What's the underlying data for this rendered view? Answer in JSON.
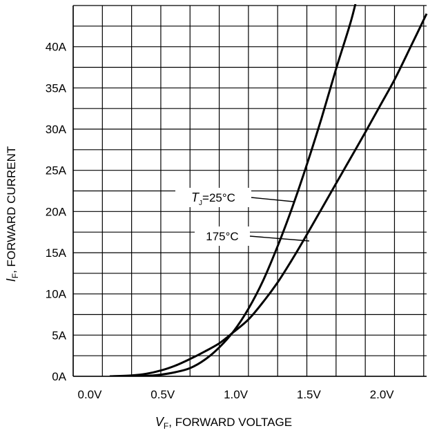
{
  "chart_data": {
    "type": "line",
    "xlabel": {
      "var": "V",
      "sub": "F",
      "text": ", FORWARD VOLTAGE"
    },
    "ylabel": {
      "var": "I",
      "sub": "F",
      "text": ", FORWARD CURRENT"
    },
    "xlim": [
      0.0,
      2.42
    ],
    "ylim": [
      0,
      45
    ],
    "x_ticks": [
      {
        "value": 0.0,
        "label": "0.0V"
      },
      {
        "value": 0.5,
        "label": "0.5V"
      },
      {
        "value": 1.0,
        "label": "1.0V"
      },
      {
        "value": 1.5,
        "label": "1.5V"
      },
      {
        "value": 2.0,
        "label": "2.0V"
      }
    ],
    "y_ticks": [
      {
        "value": 0,
        "label": "0A"
      },
      {
        "value": 5,
        "label": "5A"
      },
      {
        "value": 10,
        "label": "10A"
      },
      {
        "value": 15,
        "label": "15A"
      },
      {
        "value": 20,
        "label": "20A"
      },
      {
        "value": 25,
        "label": "25A"
      },
      {
        "value": 30,
        "label": "30A"
      },
      {
        "value": 35,
        "label": "35A"
      },
      {
        "value": 40,
        "label": "40A"
      }
    ],
    "grid": true,
    "grid_x_step": 0.2,
    "grid_y_step": 2.5,
    "series": [
      {
        "name": "T_J=25°C",
        "x": [
          0.4,
          0.5,
          0.6,
          0.7,
          0.8,
          0.9,
          1.0,
          1.1,
          1.2,
          1.3,
          1.4,
          1.5,
          1.6,
          1.7,
          1.8,
          1.9,
          1.95
        ],
        "y": [
          0.0,
          0.05,
          0.2,
          0.5,
          1.0,
          2.0,
          3.5,
          5.5,
          8.2,
          11.6,
          15.8,
          20.5,
          25.7,
          31.3,
          37.3,
          43.0,
          46.5
        ]
      },
      {
        "name": "175°C",
        "x": [
          0.25,
          0.4,
          0.5,
          0.6,
          0.7,
          0.8,
          0.9,
          1.0,
          1.1,
          1.2,
          1.3,
          1.4,
          1.5,
          1.6,
          1.7,
          1.8,
          1.9,
          2.0,
          2.1,
          2.2,
          2.3,
          2.42
        ],
        "y": [
          0.0,
          0.1,
          0.3,
          0.7,
          1.3,
          2.1,
          3.0,
          4.0,
          5.4,
          6.9,
          9.0,
          11.4,
          14.2,
          17.2,
          20.3,
          23.4,
          26.5,
          29.6,
          32.8,
          36.0,
          39.6,
          44.0
        ]
      }
    ],
    "annotations": [
      {
        "var": "T",
        "sub": "J",
        "text": "=25°C",
        "series": 0
      },
      {
        "text": "175°C",
        "series": 1
      }
    ]
  }
}
